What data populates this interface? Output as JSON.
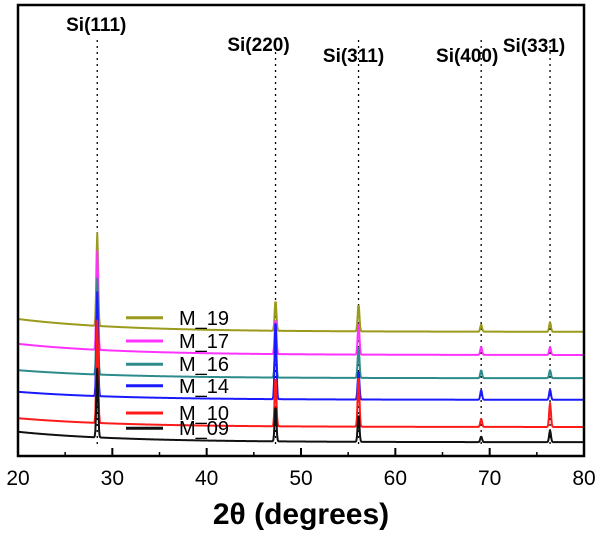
{
  "chart_data": {
    "type": "line",
    "title": "",
    "xlabel": "2θ (degrees)",
    "ylabel": "",
    "xlim": [
      20,
      80
    ],
    "xticks": [
      20,
      30,
      40,
      50,
      60,
      70,
      80
    ],
    "grid": false,
    "legend_position": "left, inline with each curve",
    "peaks": [
      {
        "label": "Si(111)",
        "x": 28.4
      },
      {
        "label": "Si(220)",
        "x": 47.3
      },
      {
        "label": "Si(311)",
        "x": 56.1
      },
      {
        "label": "Si(400)",
        "x": 69.1
      },
      {
        "label": "Si(331)",
        "x": 76.4
      }
    ],
    "series": [
      {
        "name": "M_19",
        "color": "#9a9a1c",
        "offset": 6.9,
        "bg_start": 0.85,
        "bg_end": 0.05,
        "peak_heights": [
          5.8,
          1.9,
          1.7,
          0.45,
          0.6
        ]
      },
      {
        "name": "M_17",
        "color": "#ff33ff",
        "offset": 5.45,
        "bg_start": 0.75,
        "bg_end": 0.05,
        "peak_heights": [
          6.2,
          2.2,
          2.0,
          0.5,
          0.5
        ]
      },
      {
        "name": "M_16",
        "color": "#2e8b8b",
        "offset": 4.0,
        "bg_start": 0.55,
        "bg_end": 0.05,
        "peak_heights": [
          6.0,
          2.2,
          2.0,
          0.5,
          0.5
        ]
      },
      {
        "name": "M_14",
        "color": "#1a1aff",
        "offset": 2.65,
        "bg_start": 0.55,
        "bg_end": 0.05,
        "peak_heights": [
          6.5,
          5.0,
          1.8,
          0.6,
          0.65
        ]
      },
      {
        "name": "M_10",
        "color": "#ff1a1a",
        "offset": 0.95,
        "bg_start": 0.6,
        "bg_end": 0.05,
        "peak_heights": [
          6.4,
          3.1,
          3.2,
          0.5,
          1.5
        ]
      },
      {
        "name": "M_09",
        "color": "#111111",
        "offset": 0.0,
        "bg_start": 0.7,
        "bg_end": 0.05,
        "peak_heights": [
          4.3,
          2.2,
          1.7,
          0.35,
          0.75
        ]
      }
    ]
  }
}
